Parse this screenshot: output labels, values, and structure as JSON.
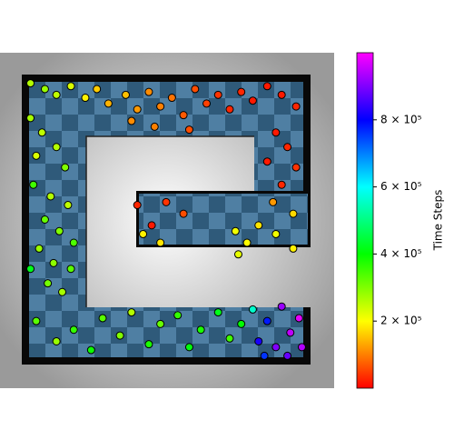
{
  "chart_data": {
    "type": "scatter",
    "xlim": [
      0,
      100
    ],
    "ylim": [
      0,
      100
    ],
    "x": [
      3,
      8,
      12,
      17,
      22,
      26,
      30,
      36,
      40,
      44,
      48,
      52,
      56,
      60,
      64,
      68,
      72,
      76,
      80,
      85,
      90,
      95,
      58,
      46,
      38,
      88,
      92,
      85,
      95,
      90,
      87,
      94,
      40,
      45,
      50,
      42,
      48,
      56,
      74,
      78,
      82,
      88,
      94,
      75,
      3,
      7,
      5,
      12,
      15,
      4,
      10,
      16,
      8,
      13,
      18,
      6,
      11,
      3,
      17,
      9,
      14,
      5,
      12,
      18,
      24,
      28,
      34,
      38,
      44,
      48,
      54,
      58,
      62,
      68,
      72,
      76,
      80,
      82,
      85,
      88,
      90,
      93,
      96,
      92,
      84,
      97
    ],
    "y": [
      97,
      95,
      93,
      96,
      92,
      95,
      90,
      93,
      88,
      94,
      89,
      92,
      86,
      95,
      90,
      93,
      88,
      94,
      91,
      96,
      93,
      89,
      81,
      82,
      84,
      80,
      75,
      70,
      68,
      62,
      56,
      52,
      55,
      48,
      56,
      45,
      42,
      52,
      46,
      42,
      48,
      45,
      40,
      38,
      85,
      80,
      72,
      75,
      68,
      62,
      58,
      55,
      50,
      46,
      42,
      40,
      35,
      33,
      33,
      28,
      25,
      15,
      8,
      12,
      5,
      16,
      10,
      18,
      7,
      14,
      17,
      6,
      12,
      18,
      9,
      14,
      19,
      8,
      15,
      6,
      20,
      11,
      16,
      3,
      3,
      6
    ],
    "values": [
      260000,
      280000,
      250000,
      230000,
      190000,
      160000,
      140000,
      150000,
      120000,
      110000,
      100000,
      90000,
      70000,
      60000,
      50000,
      40000,
      30000,
      30000,
      20000,
      20000,
      20000,
      30000,
      60000,
      100000,
      110000,
      20000,
      30000,
      20000,
      40000,
      30000,
      120000,
      170000,
      30000,
      20000,
      40000,
      190000,
      180000,
      60000,
      210000,
      200000,
      180000,
      210000,
      190000,
      220000,
      270000,
      250000,
      230000,
      260000,
      300000,
      350000,
      260000,
      250000,
      320000,
      300000,
      340000,
      280000,
      290000,
      420000,
      330000,
      310000,
      270000,
      330000,
      280000,
      360000,
      390000,
      330000,
      300000,
      260000,
      380000,
      320000,
      360000,
      410000,
      380000,
      420000,
      350000,
      400000,
      560000,
      820000,
      780000,
      900000,
      920000,
      950000,
      980000,
      880000,
      760000,
      940000
    ],
    "colorbar": {
      "label": "Time Steps",
      "clim": [
        0,
        1000000
      ],
      "colormap": "gist_rainbow",
      "ticks": [
        {
          "value": 200000,
          "label": "2 × 10⁵"
        },
        {
          "value": 400000,
          "label": "4 × 10⁵"
        },
        {
          "value": 600000,
          "label": "6 × 10⁵"
        },
        {
          "value": 800000,
          "label": "8 × 10⁵"
        }
      ]
    }
  }
}
